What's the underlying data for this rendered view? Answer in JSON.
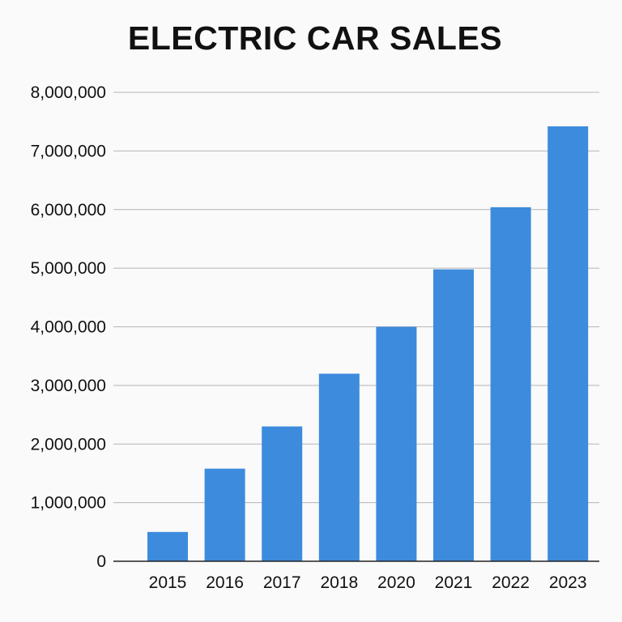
{
  "chart_data": {
    "type": "bar",
    "title": "ELECTRIC CAR SALES",
    "xlabel": "",
    "ylabel": "",
    "categories": [
      "2015",
      "2016",
      "2017",
      "2018",
      "2020",
      "2021",
      "2022",
      "2023"
    ],
    "values": [
      500000,
      1580000,
      2300000,
      3200000,
      4000000,
      4980000,
      6040000,
      7420000
    ],
    "ylim": [
      0,
      8000000
    ],
    "yticks": [
      "0",
      "1,000,000",
      "2,000,000",
      "3,000,000",
      "4,000,000",
      "5,000,000",
      "6,000,000",
      "7,000,000",
      "8,000,000"
    ],
    "grid": true,
    "legend": "none",
    "bar_color": "#3d8bdd"
  }
}
